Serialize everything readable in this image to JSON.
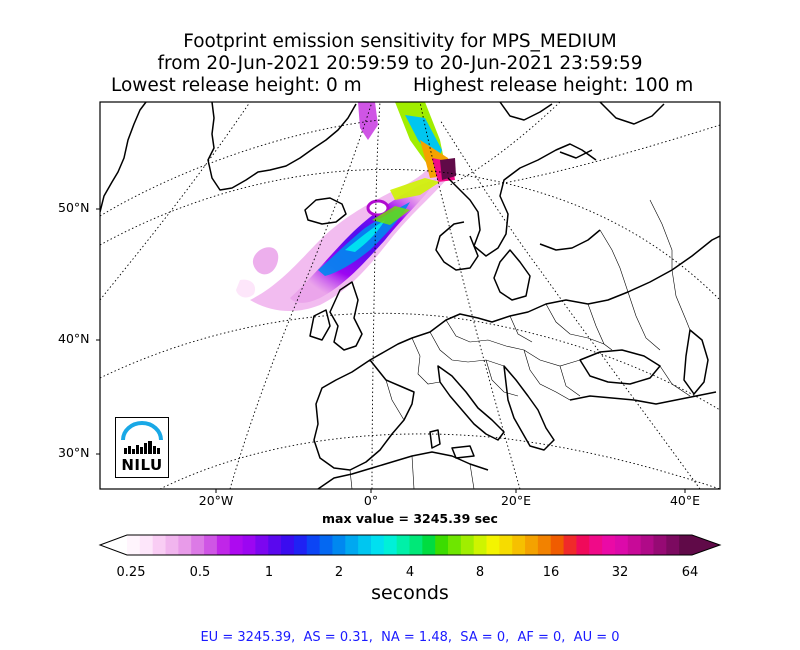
{
  "title": {
    "line1": "Footprint emission sensitivity for MPS_MEDIUM",
    "line2": "from 20-Jun-2021 20:59:59 to 20-Jun-2021 23:59:59",
    "line3_left": "Lowest release height: 0 m",
    "line3_right": "Highest release height: 100 m"
  },
  "latitude_labels": [
    "50°N",
    "40°N",
    "30°N"
  ],
  "longitude_labels": [
    "20°W",
    "0°",
    "20°E",
    "40°E"
  ],
  "max_value_text": "max value = 3245.39 sec",
  "colorbar": {
    "ticks": [
      "0.25",
      "0.5",
      "1",
      "2",
      "4",
      "8",
      "16",
      "32",
      "64"
    ],
    "units": "seconds",
    "colors": [
      "#fff5fd",
      "#fde6fa",
      "#f9cdf4",
      "#f1b5ee",
      "#e89be9",
      "#dc7ae6",
      "#cf55e5",
      "#c026e8",
      "#ad0af0",
      "#9c06f2",
      "#7c06f0",
      "#5a08ee",
      "#3a0cf0",
      "#1f22f4",
      "#0c45f5",
      "#0468f2",
      "#0088f0",
      "#00a8f0",
      "#00c6f0",
      "#00e0f0",
      "#00f0d8",
      "#00f0a8",
      "#00e878",
      "#00dc40",
      "#3cdc00",
      "#6ee600",
      "#a0ee00",
      "#cef400",
      "#f4f400",
      "#f6dc00",
      "#f6c000",
      "#f4a200",
      "#f28200",
      "#f05c00",
      "#f02a2a",
      "#f00a5a",
      "#f00a88",
      "#ea0aa6",
      "#dc0aaa",
      "#c80a98",
      "#b00a88",
      "#960a74",
      "#7c0a60",
      "#600a48"
    ]
  },
  "logo": {
    "text": "NILU"
  },
  "region_summary": "EU = 3245.39,  AS = 0.31,  NA = 1.48,  SA = 0,  AF = 0,  AU = 0"
}
